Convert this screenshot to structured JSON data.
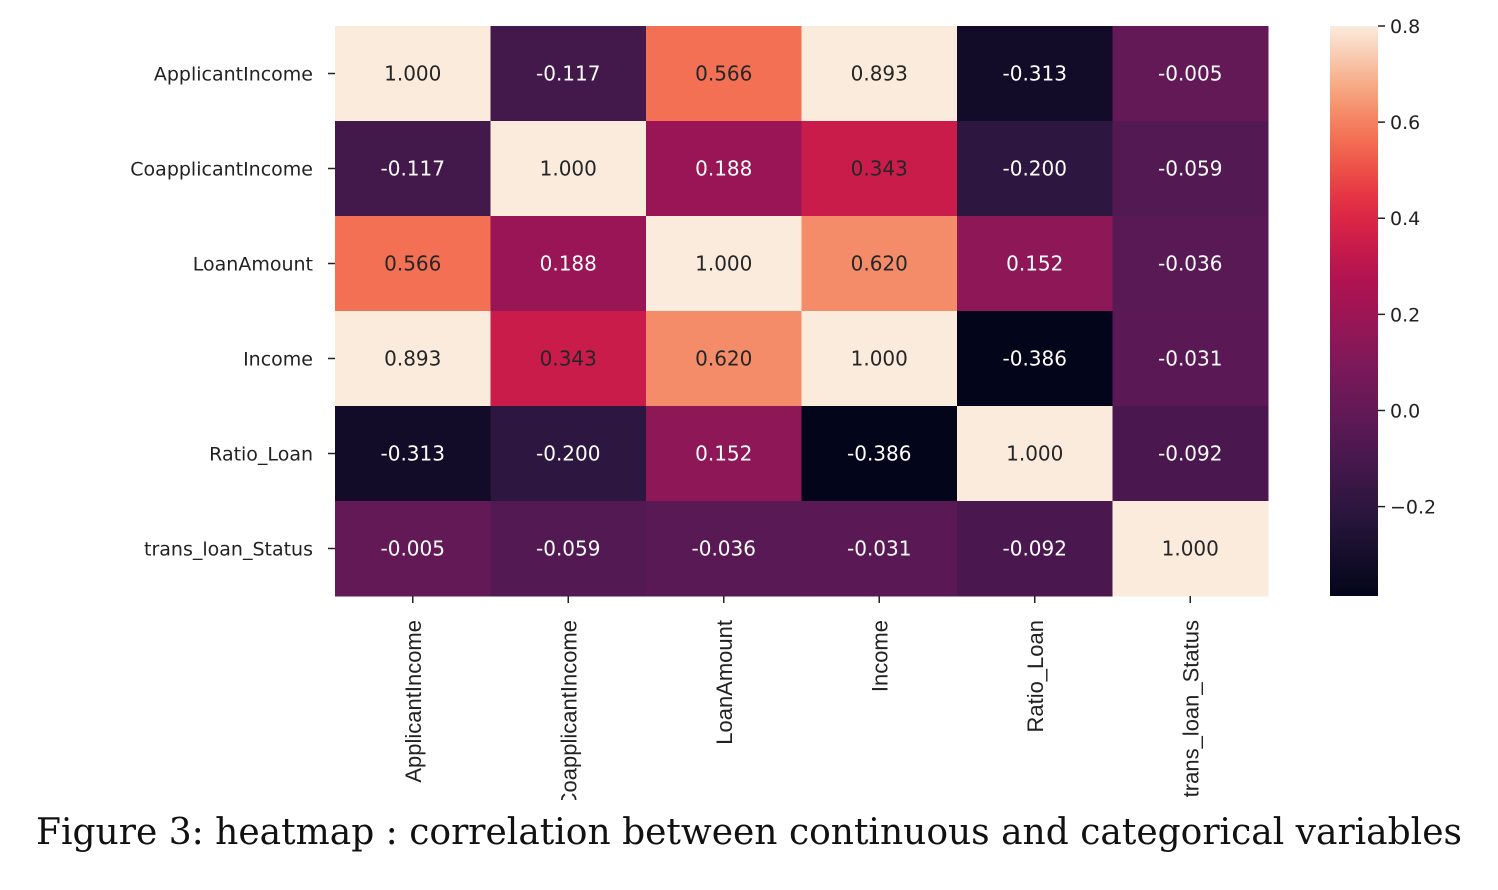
{
  "caption": "Figure 3: heatmap : correlation between continuous and categorical variables",
  "chart_data": {
    "type": "heatmap",
    "row_labels": [
      "ApplicantIncome",
      "CoapplicantIncome",
      "LoanAmount",
      "Income",
      "Ratio_Loan",
      "trans_loan_Status"
    ],
    "col_labels": [
      "ApplicantIncome",
      "CoapplicantIncome",
      "LoanAmount",
      "Income",
      "Ratio_Loan",
      "trans_loan_Status"
    ],
    "values": [
      [
        1.0,
        -0.117,
        0.566,
        0.893,
        -0.313,
        -0.005
      ],
      [
        -0.117,
        1.0,
        0.188,
        0.343,
        -0.2,
        -0.059
      ],
      [
        0.566,
        0.188,
        1.0,
        0.62,
        0.152,
        -0.036
      ],
      [
        0.893,
        0.343,
        0.62,
        1.0,
        -0.386,
        -0.031
      ],
      [
        -0.313,
        -0.2,
        0.152,
        -0.386,
        1.0,
        -0.092
      ],
      [
        -0.005,
        -0.059,
        -0.036,
        -0.031,
        -0.092,
        1.0
      ]
    ],
    "annotation_format": "0.000",
    "colormap": "rocket",
    "vmin": -0.386,
    "vmax": 0.8,
    "colorbar_ticks": [
      "0.8",
      "0.6",
      "0.4",
      "0.2",
      "0.0",
      "−0.2"
    ],
    "colorbar_tick_values": [
      0.8,
      0.6,
      0.4,
      0.2,
      0.0,
      -0.2
    ],
    "colorbar_position": "right"
  }
}
